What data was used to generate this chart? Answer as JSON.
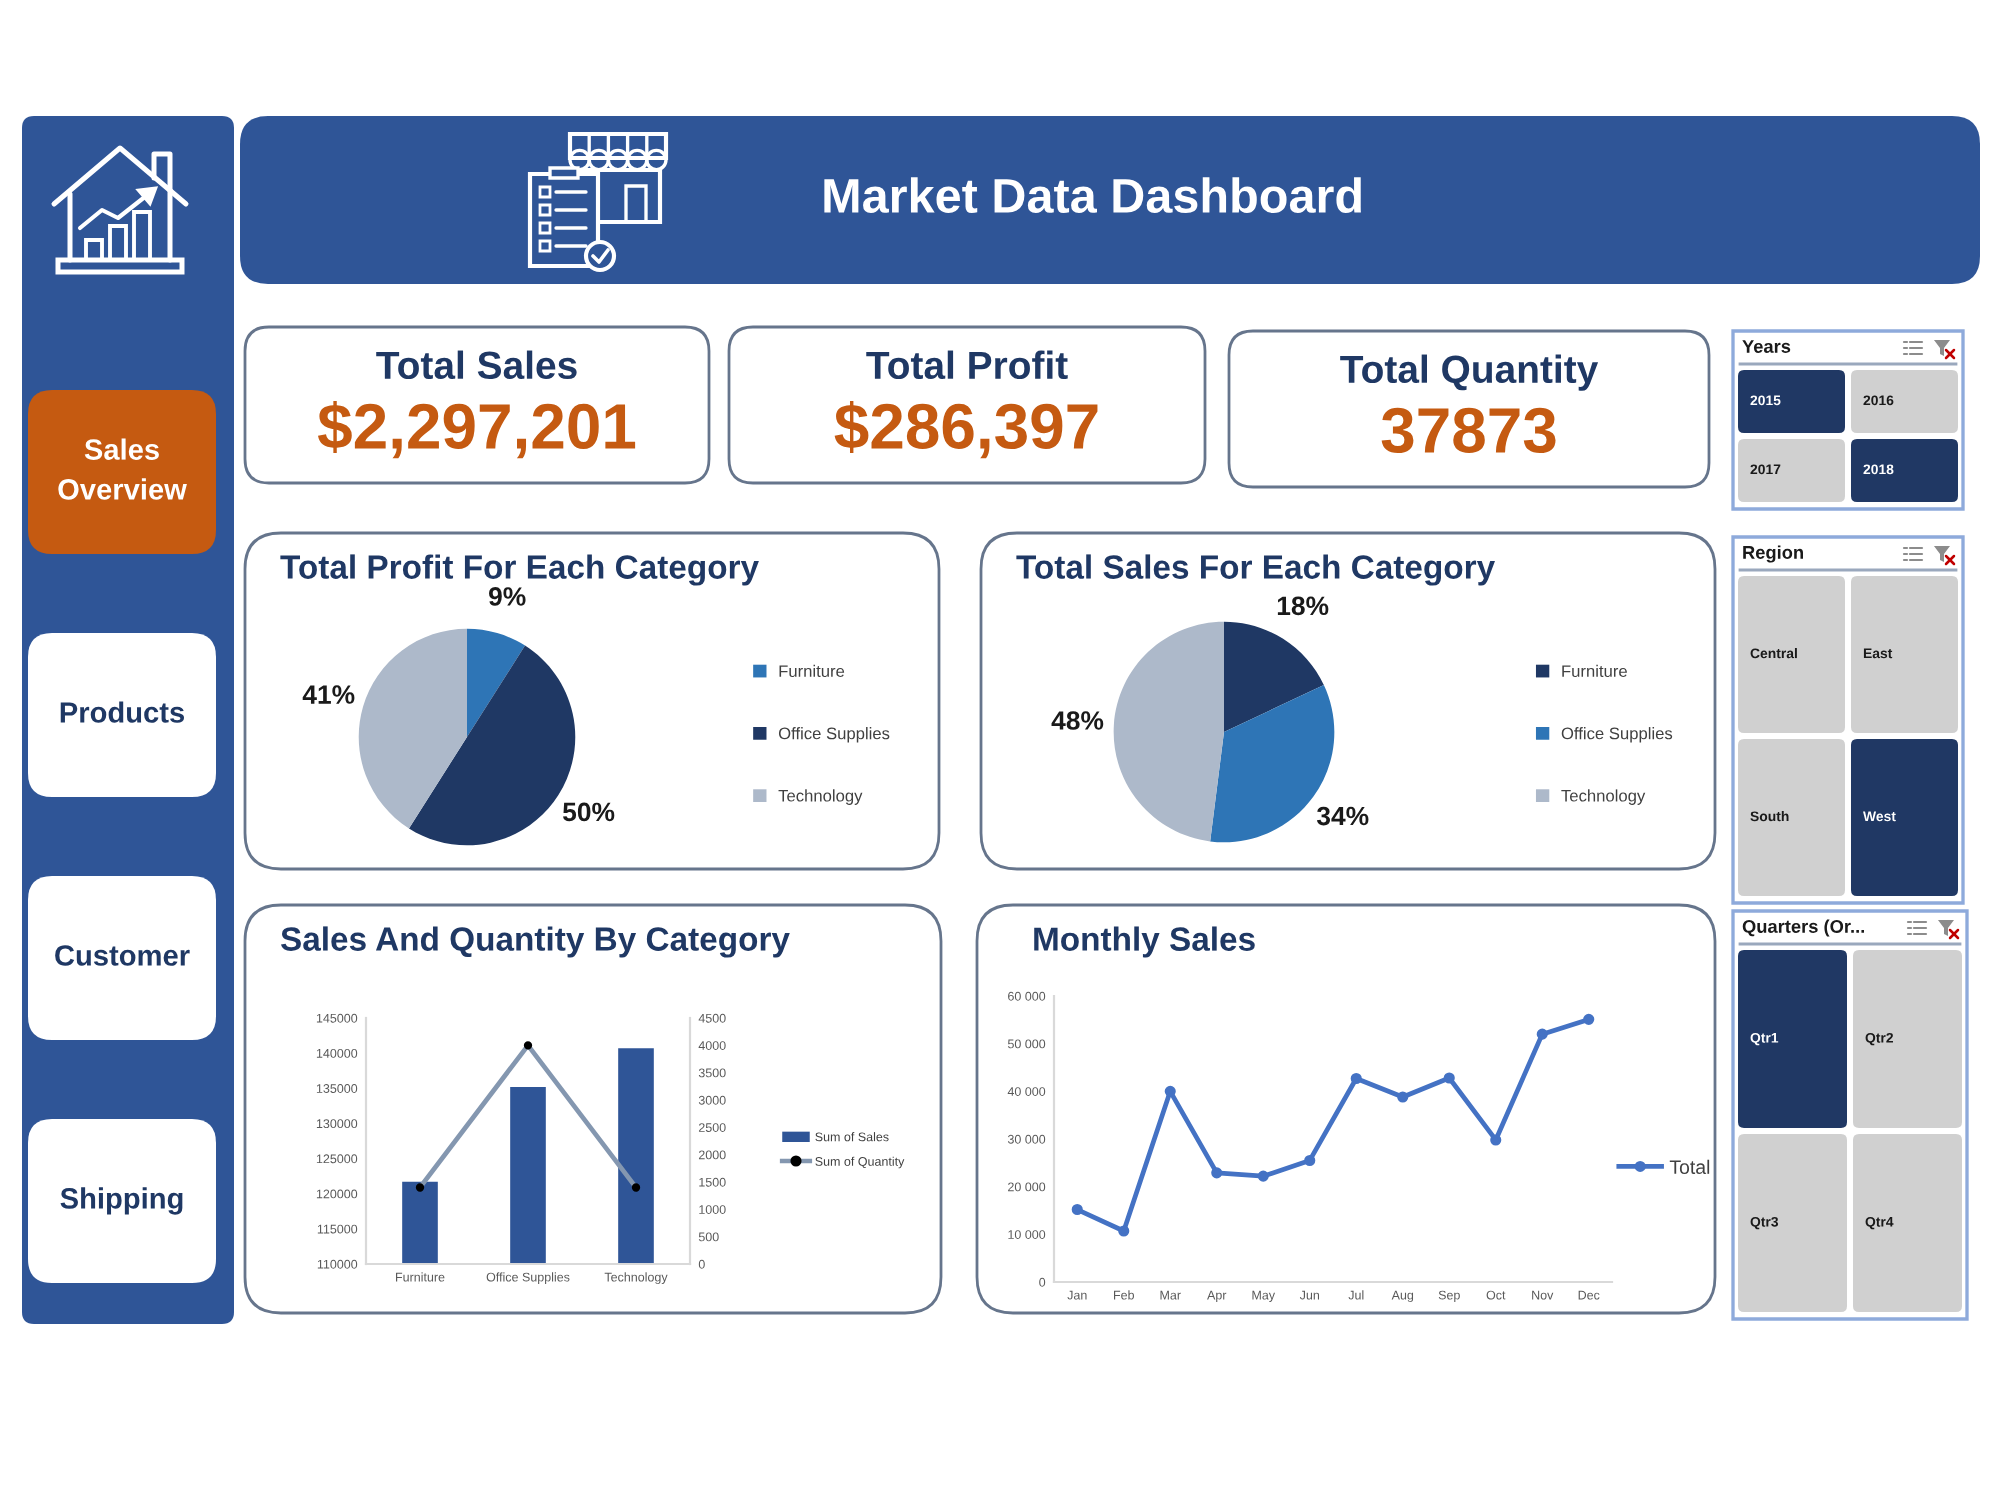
{
  "chart_data": [
    {
      "type": "other",
      "title": "Market Data Dashboard"
    },
    {
      "type": "other",
      "categories": [
        "Sales Overview",
        "Products",
        "Customer",
        "Shipping"
      ],
      "colors": [
        "#c55a11",
        "#ffffff",
        "#ffffff",
        "#ffffff"
      ]
    },
    {
      "type": "other",
      "title": "Total Sales",
      "annotations": [
        "$2,297,201"
      ]
    },
    {
      "type": "other",
      "title": "Total Profit",
      "annotations": [
        "$286,397"
      ]
    },
    {
      "type": "other",
      "title": "Total Quantity",
      "annotations": [
        "37873"
      ]
    },
    {
      "type": "other",
      "title": "Years",
      "categories": [
        "2015",
        "2016",
        "2017",
        "2018"
      ],
      "colors": [
        "#203864",
        "#d0d0d0",
        "#d0d0d0",
        "#203864"
      ]
    },
    {
      "type": "pie",
      "title": "Total Profit For Each Category",
      "categories": [
        "Furniture",
        "Office Supplies",
        "Technology"
      ],
      "values": [
        9,
        50,
        41
      ],
      "colors": [
        "#2e75b6",
        "#1f3864",
        "#adb9ca"
      ],
      "value_labels": [
        "9%",
        "50%",
        "41%"
      ],
      "legend": "right"
    },
    {
      "type": "pie",
      "title": "Total Sales For Each Category",
      "categories": [
        "Furniture",
        "Office Supplies",
        "Technology"
      ],
      "values": [
        18,
        34,
        48
      ],
      "colors": [
        "#1f3864",
        "#2e75b6",
        "#adb9ca"
      ],
      "value_labels": [
        "18%",
        "34%",
        "48%"
      ],
      "legend": "right"
    },
    {
      "type": "other",
      "title": "Region",
      "categories": [
        "Central",
        "East",
        "South",
        "West"
      ],
      "colors": [
        "#d0d0d0",
        "#d0d0d0",
        "#d0d0d0",
        "#203864"
      ]
    },
    {
      "type": "bar",
      "title": "Sales And Quantity By Category",
      "categories": [
        "Furniture",
        "Office Supplies",
        "Technology"
      ],
      "series": [
        {
          "name": "Sum of Sales",
          "color": "#2f5597",
          "values": [
            121700,
            135200,
            140700
          ]
        },
        {
          "name": "Sum of Quantity",
          "type": "line",
          "axis": "y2",
          "color": "#8497b0",
          "colors": [
            "#000000",
            "#000000",
            "#000000"
          ],
          "marker": "circle",
          "values": [
            1400,
            4000,
            1400
          ]
        }
      ],
      "ylim": [
        110000,
        145000
      ],
      "yticks": [
        110000,
        115000,
        120000,
        125000,
        130000,
        135000,
        140000,
        145000
      ],
      "y2lim": [
        0,
        4500
      ],
      "y2ticks": [
        0,
        500,
        1000,
        1500,
        2000,
        2500,
        3000,
        3500,
        4000,
        4500
      ],
      "legend": "right"
    },
    {
      "type": "line",
      "title": "Monthly Sales",
      "categories": [
        "Jan",
        "Feb",
        "Mar",
        "Apr",
        "May",
        "Jun",
        "Jul",
        "Aug",
        "Sep",
        "Oct",
        "Nov",
        "Dec"
      ],
      "series": [
        {
          "name": "Total",
          "color": "#4472c4",
          "values": [
            15200,
            10700,
            40000,
            22900,
            22200,
            25500,
            42700,
            38800,
            42800,
            29800,
            52000,
            55100
          ]
        }
      ],
      "marker": "circle",
      "ylim": [
        0,
        60000
      ],
      "yticks": [
        0,
        {
          "value": 10000,
          "label": "10 000"
        },
        {
          "value": 20000,
          "label": "20 000"
        },
        {
          "value": 30000,
          "label": "30 000"
        },
        {
          "value": 40000,
          "label": "40 000"
        },
        {
          "value": 50000,
          "label": "50 000"
        },
        {
          "value": 60000,
          "label": "60 000"
        }
      ],
      "legend": "right"
    },
    {
      "type": "other",
      "title": "Quarters (Or...",
      "categories": [
        "Qtr1",
        "Qtr2",
        "Qtr3",
        "Qtr4"
      ],
      "colors": [
        "#203864",
        "#d0d0d0",
        "#d0d0d0",
        "#d0d0d0"
      ]
    }
  ]
}
